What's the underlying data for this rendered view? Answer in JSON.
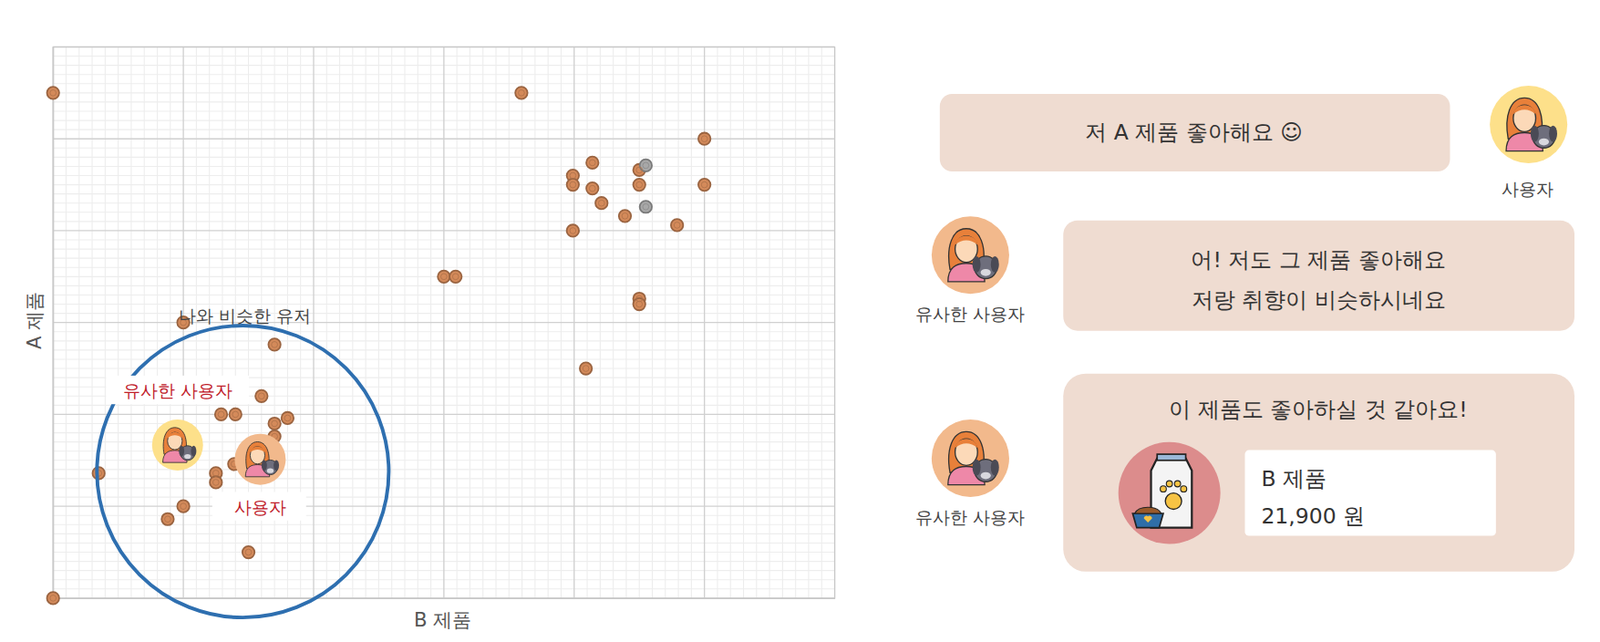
{
  "chart_data": {
    "type": "scatter",
    "x_label": "B 제품",
    "y_label": "A 제품",
    "x": [
      0,
      35.95,
      50,
      50,
      41.4,
      39.9,
      39.9,
      41.4,
      42.1,
      45,
      45.5,
      45,
      45.5,
      43.9,
      47.9,
      39.9,
      30,
      30.9,
      45,
      45,
      40.9,
      10,
      17,
      16,
      12.9,
      14,
      18,
      17,
      17,
      13.9,
      12.5,
      12.5,
      3.5,
      10,
      8.8,
      15,
      0
    ],
    "values": [
      55,
      55,
      50,
      45,
      47.4,
      46,
      45,
      44.6,
      43,
      46.6,
      47.1,
      45,
      42.6,
      41.6,
      40.6,
      40,
      35,
      35,
      32.6,
      32,
      25,
      30,
      27.6,
      22,
      20,
      20,
      19.6,
      19,
      17.6,
      14.6,
      13.6,
      12.6,
      13.6,
      10,
      8.6,
      5,
      0
    ],
    "colors": [
      "#d48a5a",
      "#d48a5a",
      "#d48a5a",
      "#d48a5a",
      "#d48a5a",
      "#d48a5a",
      "#d48a5a",
      "#d48a5a",
      "#d48a5a",
      "#d48a5a",
      "#a8a8a8",
      "#d48a5a",
      "#a8a8a8",
      "#d48a5a",
      "#d48a5a",
      "#d48a5a",
      "#d48a5a",
      "#d48a5a",
      "#d48a5a",
      "#d48a5a",
      "#d48a5a",
      "#d48a5a",
      "#d48a5a",
      "#d48a5a",
      "#d48a5a",
      "#d48a5a",
      "#d48a5a",
      "#d48a5a",
      "#d48a5a",
      "#d48a5a",
      "#d48a5a",
      "#d48a5a",
      "#d48a5a",
      "#d48a5a",
      "#d48a5a",
      "#d48a5a",
      "#d48a5a"
    ],
    "xlim": [
      0,
      60
    ],
    "ylim": [
      0,
      60
    ],
    "xticks": [
      0,
      1,
      2,
      3,
      4,
      5,
      6,
      7,
      8,
      9,
      10,
      11,
      12,
      13,
      14,
      15,
      16,
      17,
      18,
      19,
      20,
      21,
      22,
      23,
      24,
      25,
      26,
      27,
      28,
      29,
      30,
      31,
      32,
      33,
      34,
      35,
      36,
      37,
      38,
      39,
      40,
      41,
      42,
      43,
      44,
      45,
      46,
      47,
      48,
      49,
      50,
      51,
      52,
      53,
      54,
      55,
      56,
      57,
      58,
      59,
      60
    ],
    "yticks": [
      0,
      1,
      2,
      3,
      4,
      5,
      6,
      7,
      8,
      9,
      10,
      11,
      12,
      13,
      14,
      15,
      16,
      17,
      18,
      19,
      20,
      21,
      22,
      23,
      24,
      25,
      26,
      27,
      28,
      29,
      30,
      31,
      32,
      33,
      34,
      35,
      36,
      37,
      38,
      39,
      40,
      41,
      42,
      43,
      44,
      45,
      46,
      47,
      48,
      49,
      50,
      51,
      52,
      53,
      54,
      55,
      56,
      57,
      58,
      59,
      60
    ],
    "grid": true,
    "tick_labels": false,
    "marker": "circle",
    "annotations": [
      "나와 비슷한 유저",
      "유사한 사용자",
      "사용자"
    ]
  },
  "conversation": {
    "messages": [
      {
        "speaker": "사용자",
        "lines": [
          "저 A 제품 좋아해요 ☺"
        ]
      },
      {
        "speaker": "유사한 사용자",
        "lines": [
          "어! 저도 그 제품 좋아해요",
          "저랑 취향이 비슷하시네요"
        ]
      },
      {
        "speaker": "유사한 사용자",
        "lines": [
          "이 제품도 좋아하실 것 같아요!"
        ],
        "product": {
          "name": "B 제품",
          "price": "21,900 원"
        }
      }
    ]
  }
}
